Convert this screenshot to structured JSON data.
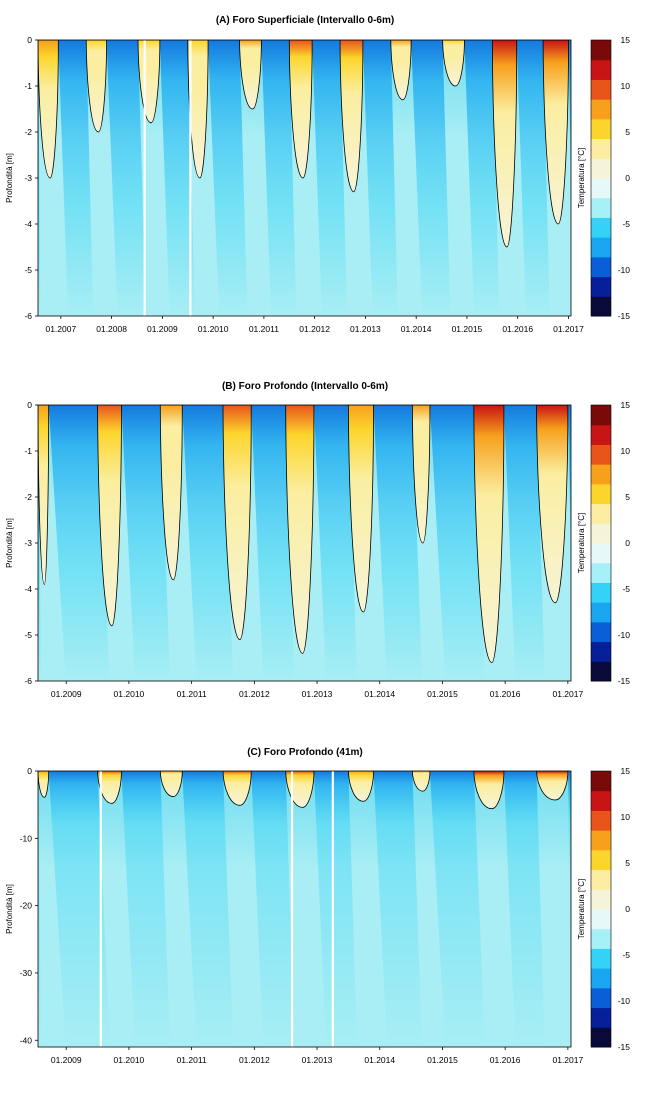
{
  "chart_data": [
    {
      "type": "heatmap",
      "title": "(A) Foro Superficiale (Intervallo 0-6m)",
      "ylabel": "Profondità [m]",
      "ylim": [
        -6,
        0
      ],
      "yticks": [
        0,
        -1,
        -2,
        -3,
        -4,
        -5,
        -6
      ],
      "xlim": [
        2006.55,
        2017.05
      ],
      "xticks": [
        {
          "label": "01.2007",
          "x": 2007.0
        },
        {
          "label": "01.2008",
          "x": 2008.0
        },
        {
          "label": "01.2009",
          "x": 2009.0
        },
        {
          "label": "01.2010",
          "x": 2010.0
        },
        {
          "label": "01.2011",
          "x": 2011.0
        },
        {
          "label": "01.2012",
          "x": 2012.0
        },
        {
          "label": "01.2013",
          "x": 2013.0
        },
        {
          "label": "01.2014",
          "x": 2014.0
        },
        {
          "label": "01.2015",
          "x": 2015.0
        },
        {
          "label": "01.2016",
          "x": 2016.0
        },
        {
          "label": "01.2017",
          "x": 2017.0
        }
      ],
      "thaw_seasons": [
        {
          "start": 2006.55,
          "end": 2006.95,
          "max_depth": 3.0,
          "peak_temp": 8
        },
        {
          "start": 2007.5,
          "end": 2007.9,
          "max_depth": 2.0,
          "peak_temp": 6
        },
        {
          "start": 2008.52,
          "end": 2008.95,
          "max_depth": 1.8,
          "peak_temp": 5
        },
        {
          "start": 2009.5,
          "end": 2009.9,
          "max_depth": 3.0,
          "peak_temp": 6
        },
        {
          "start": 2010.52,
          "end": 2010.95,
          "max_depth": 1.5,
          "peak_temp": 7
        },
        {
          "start": 2011.5,
          "end": 2011.95,
          "max_depth": 3.0,
          "peak_temp": 9
        },
        {
          "start": 2012.5,
          "end": 2012.95,
          "max_depth": 3.3,
          "peak_temp": 9
        },
        {
          "start": 2013.5,
          "end": 2013.9,
          "max_depth": 1.3,
          "peak_temp": 7
        },
        {
          "start": 2014.52,
          "end": 2014.95,
          "max_depth": 1.0,
          "peak_temp": 6
        },
        {
          "start": 2015.5,
          "end": 2015.98,
          "max_depth": 4.5,
          "peak_temp": 11
        },
        {
          "start": 2016.5,
          "end": 2017.0,
          "max_depth": 4.0,
          "peak_temp": 11
        }
      ],
      "gaps": [
        2008.65,
        2009.55
      ]
    },
    {
      "type": "heatmap",
      "title": "(B) Foro Profondo (Intervallo 0-6m)",
      "ylabel": "Profondità [m]",
      "ylim": [
        -6,
        0
      ],
      "yticks": [
        0,
        -1,
        -2,
        -3,
        -4,
        -5,
        -6
      ],
      "xlim": [
        2008.55,
        2017.05
      ],
      "xticks": [
        {
          "label": "01.2009",
          "x": 2009.0
        },
        {
          "label": "01.2010",
          "x": 2010.0
        },
        {
          "label": "01.2011",
          "x": 2011.0
        },
        {
          "label": "01.2012",
          "x": 2012.0
        },
        {
          "label": "01.2013",
          "x": 2013.0
        },
        {
          "label": "01.2014",
          "x": 2014.0
        },
        {
          "label": "01.2015",
          "x": 2015.0
        },
        {
          "label": "01.2016",
          "x": 2016.0
        },
        {
          "label": "01.2017",
          "x": 2017.0
        }
      ],
      "thaw_seasons": [
        {
          "start": 2008.55,
          "end": 2008.72,
          "max_depth": 3.9,
          "peak_temp": 8
        },
        {
          "start": 2009.5,
          "end": 2009.88,
          "max_depth": 4.8,
          "peak_temp": 10
        },
        {
          "start": 2010.5,
          "end": 2010.85,
          "max_depth": 3.8,
          "peak_temp": 7
        },
        {
          "start": 2011.5,
          "end": 2011.95,
          "max_depth": 5.1,
          "peak_temp": 9
        },
        {
          "start": 2012.5,
          "end": 2012.95,
          "max_depth": 5.4,
          "peak_temp": 10
        },
        {
          "start": 2013.5,
          "end": 2013.9,
          "max_depth": 4.5,
          "peak_temp": 8
        },
        {
          "start": 2014.52,
          "end": 2014.8,
          "max_depth": 3.0,
          "peak_temp": 7
        },
        {
          "start": 2015.5,
          "end": 2015.98,
          "max_depth": 5.6,
          "peak_temp": 12
        },
        {
          "start": 2016.5,
          "end": 2017.0,
          "max_depth": 4.3,
          "peak_temp": 12
        }
      ],
      "gaps": []
    },
    {
      "type": "heatmap",
      "title": "(C) Foro Profondo (41m)",
      "ylabel": "Profondità [m]",
      "ylim": [
        -41,
        0
      ],
      "yticks": [
        0,
        -10,
        -20,
        -30,
        -40
      ],
      "xlim": [
        2008.55,
        2017.05
      ],
      "xticks": [
        {
          "label": "01.2009",
          "x": 2009.0
        },
        {
          "label": "01.2010",
          "x": 2010.0
        },
        {
          "label": "01.2011",
          "x": 2011.0
        },
        {
          "label": "01.2012",
          "x": 2012.0
        },
        {
          "label": "01.2013",
          "x": 2013.0
        },
        {
          "label": "01.2014",
          "x": 2014.0
        },
        {
          "label": "01.2015",
          "x": 2015.0
        },
        {
          "label": "01.2016",
          "x": 2016.0
        },
        {
          "label": "01.2017",
          "x": 2017.0
        }
      ],
      "thaw_seasons": [
        {
          "start": 2008.55,
          "end": 2008.72,
          "max_depth": 3.9,
          "peak_temp": 8
        },
        {
          "start": 2009.5,
          "end": 2009.88,
          "max_depth": 4.8,
          "peak_temp": 10
        },
        {
          "start": 2010.5,
          "end": 2010.85,
          "max_depth": 3.8,
          "peak_temp": 7
        },
        {
          "start": 2011.5,
          "end": 2011.95,
          "max_depth": 5.1,
          "peak_temp": 9
        },
        {
          "start": 2012.5,
          "end": 2012.95,
          "max_depth": 5.4,
          "peak_temp": 10
        },
        {
          "start": 2013.5,
          "end": 2013.9,
          "max_depth": 4.5,
          "peak_temp": 8
        },
        {
          "start": 2014.52,
          "end": 2014.8,
          "max_depth": 3.0,
          "peak_temp": 7
        },
        {
          "start": 2015.5,
          "end": 2015.98,
          "max_depth": 5.6,
          "peak_temp": 12
        },
        {
          "start": 2016.5,
          "end": 2017.0,
          "max_depth": 4.3,
          "peak_temp": 12
        }
      ],
      "gaps": [
        2009.55,
        2012.6,
        2013.25
      ]
    }
  ],
  "colorbar": {
    "label": "Temperatura [°C]",
    "range": [
      -15,
      15
    ],
    "ticks": [
      15,
      10,
      5,
      0,
      -5,
      -10,
      -15
    ],
    "colors": [
      "#0a0a3a",
      "#06209a",
      "#0a5fd8",
      "#19a6f0",
      "#33d2f6",
      "#a6f0f8",
      "#e6f8f8",
      "#f6f4d8",
      "#fbeea0",
      "#fcd52c",
      "#f7a01c",
      "#e8541a",
      "#c81414",
      "#7a0a0a"
    ],
    "frozen_base_color": "#a8eef4",
    "zero_contour_color": "#000000"
  }
}
